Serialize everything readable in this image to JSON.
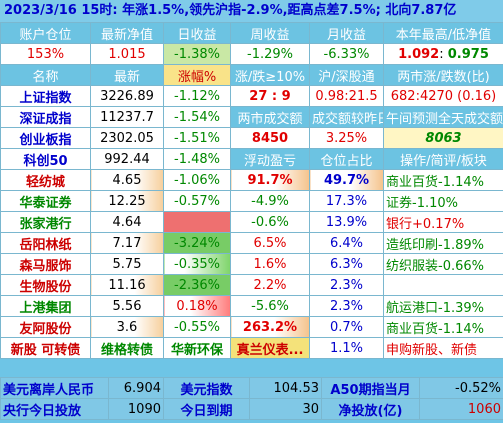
{
  "title": "2023/3/16  15时: 年涨1.5%,领先沪指-2.9%,距高点差7.5%; 北向7.87亿",
  "account_header": [
    "账户仓位",
    "最新净值",
    "日收益",
    "周收益",
    "月收益",
    "本年最高/低净值"
  ],
  "account_row": {
    "position": "153%",
    "nav": "1.015",
    "day": "-1.38%",
    "week": "-1.29%",
    "month": "-6.33%",
    "high": "1.092",
    "low": "0.975",
    "sep": ": "
  },
  "market_header": [
    "名称",
    "最新",
    "涨幅%",
    "涨/跌≥10%",
    "沪/深股通",
    "两市涨/跌数(比)"
  ],
  "indices": [
    {
      "name": "上证指数",
      "last": "3226.89",
      "chg": "-1.12%"
    },
    {
      "name": "深证成指",
      "last": "11237.7",
      "chg": "-1.54%"
    },
    {
      "name": "创业板指",
      "last": "2302.05",
      "chg": "-1.51%"
    },
    {
      "name": "科创50",
      "last": "992.44",
      "chg": "-1.48%"
    }
  ],
  "market_stats": {
    "limit": "27 : 9",
    "north": "0.98:21.5",
    "breadth": "682:4270 (0.16)",
    "turnover_hdr": "两市成交额",
    "compare_hdr": "成交额较昨日",
    "forecast_hdr": "午间预测全天成交额",
    "turnover": "8450",
    "compare": "3.25%",
    "forecast": "8063"
  },
  "holding_header": [
    "浮动盈亏",
    "仓位占比",
    "操作/简评/板块"
  ],
  "holdings": [
    {
      "name": "轻纺城",
      "last": "4.65",
      "chg": "-1.06%",
      "pnl": "91.7%",
      "weight": "49.7%",
      "note": "商业百货-1.14%"
    },
    {
      "name": "华泰证券",
      "last": "12.25",
      "chg": "-0.57%",
      "pnl": "-4.9%",
      "weight": "17.3%",
      "note": "证券-1.10%"
    },
    {
      "name": "张家港行",
      "last": "4.64",
      "chg": "",
      "pnl": "-0.6%",
      "weight": "13.9%",
      "note": "银行+0.17%"
    },
    {
      "name": "岳阳林纸",
      "last": "7.17",
      "chg": "-3.24%",
      "pnl": "6.5%",
      "weight": "6.4%",
      "note": "造纸印刷-1.89%"
    },
    {
      "name": "森马服饰",
      "last": "5.75",
      "chg": "-0.35%",
      "pnl": "1.6%",
      "weight": "6.3%",
      "note": "纺织服装-0.66%"
    },
    {
      "name": "生物股份",
      "last": "11.16",
      "chg": "-2.36%",
      "pnl": "2.2%",
      "weight": "2.3%",
      "note": ""
    },
    {
      "name": "上港集团",
      "last": "5.56",
      "chg": "0.18%",
      "pnl": "-5.6%",
      "weight": "2.3%",
      "note": "航运港口-1.39%"
    },
    {
      "name": "友阿股份",
      "last": "3.6",
      "chg": "-0.55%",
      "pnl": "263.2%",
      "weight": "0.7%",
      "note": "商业百货-1.14%"
    }
  ],
  "ipo_row": {
    "label": "新股 可转债",
    "c1": "维格转债",
    "c2": "华新环保",
    "c3": "真兰仪表...",
    "weight": "1.1%",
    "note": "申购新股、新债"
  },
  "footer1": {
    "k1": "美元离岸人民币",
    "v1": "6.904",
    "k2": "美元指数",
    "v2": "104.53",
    "k3": "A50期指当月",
    "v3": "-0.52%"
  },
  "footer2": {
    "k1": "央行今日投放",
    "v1": "1090",
    "k2": "今日到期",
    "v2": "30",
    "k3": "净投放(亿)",
    "v3": "1060"
  }
}
